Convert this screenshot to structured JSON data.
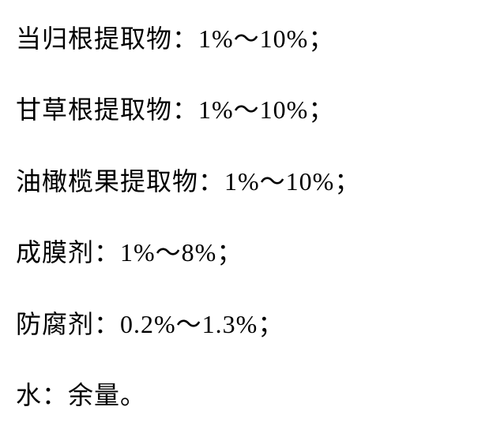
{
  "document": {
    "lines": [
      {
        "label": "当归根提取物：",
        "value": "1%～10%；"
      },
      {
        "label": "甘草根提取物：",
        "value": "1%～10%；"
      },
      {
        "label": "油橄榄果提取物：",
        "value": "1%～10%；"
      },
      {
        "label": "成膜剂：",
        "value": "1%～8%；"
      },
      {
        "label": "防腐剂：",
        "value": "0.2%～1.3%；"
      },
      {
        "label": "水：",
        "value": "余量。"
      }
    ],
    "styling": {
      "font_family": "SimSun",
      "font_size": 32,
      "text_color": "#000000",
      "background_color": "#ffffff",
      "line_spacing": 52
    }
  }
}
